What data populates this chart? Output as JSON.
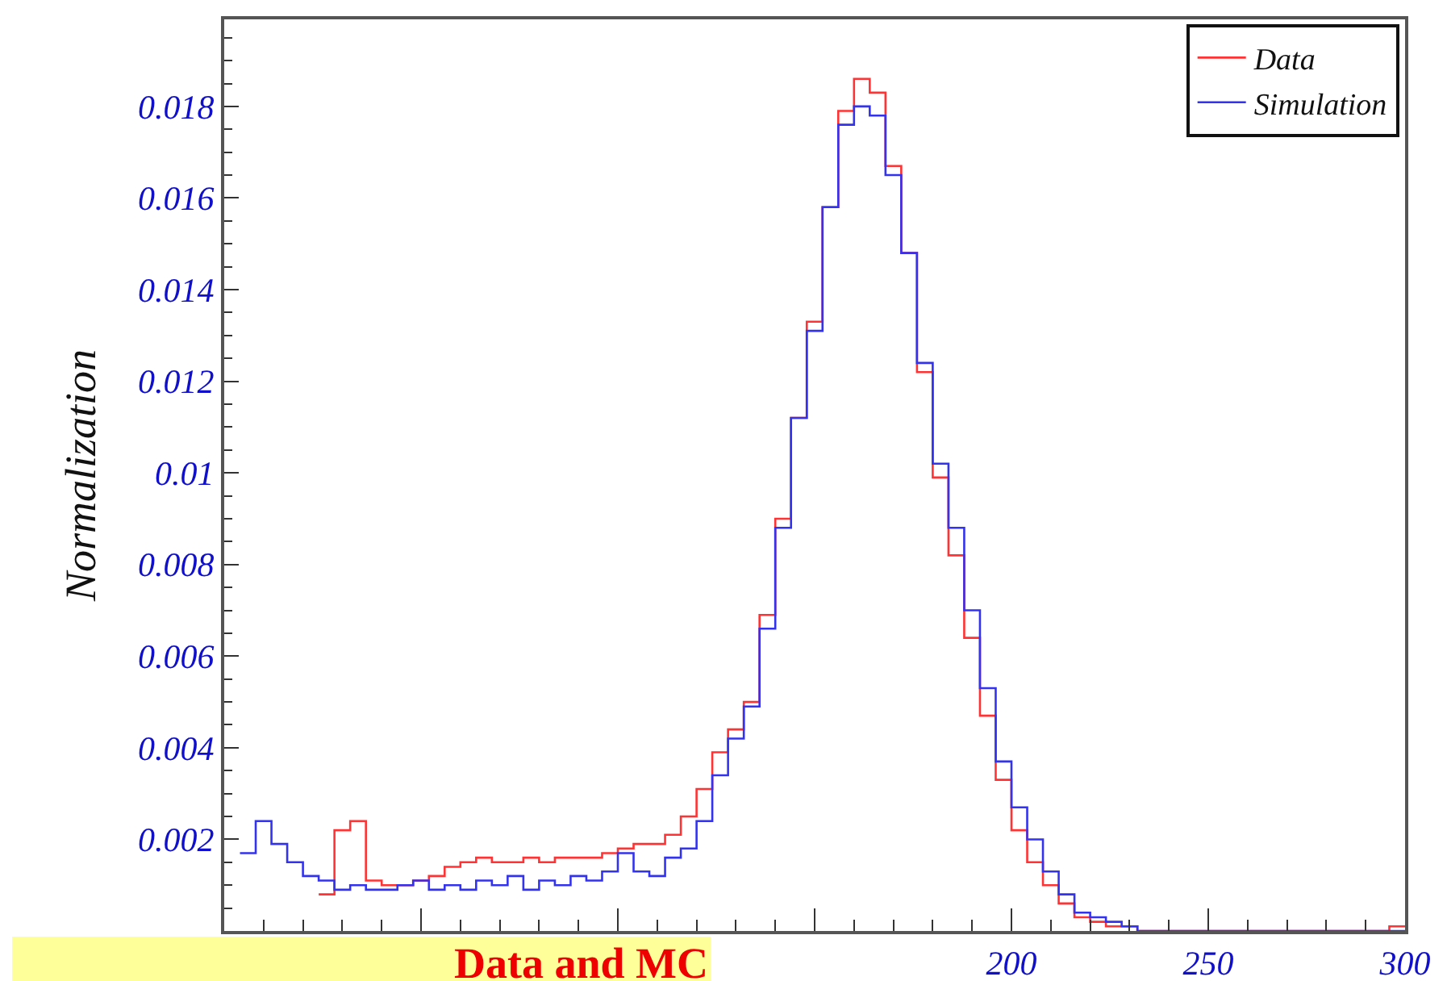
{
  "chart_data": {
    "type": "histogram",
    "ylabel": "Normalization",
    "bins": [
      4,
      8,
      12,
      16,
      20,
      24,
      28,
      32,
      36,
      40,
      44,
      48,
      52,
      56,
      60,
      64,
      68,
      72,
      76,
      80,
      84,
      88,
      92,
      96,
      100,
      104,
      108,
      112,
      116,
      120,
      124,
      128,
      132,
      136,
      140,
      144,
      148,
      152,
      156,
      160,
      164,
      168,
      172,
      176,
      180,
      184,
      188,
      192,
      196,
      200,
      204,
      208,
      212,
      216,
      220,
      224,
      228,
      232,
      236,
      240,
      244,
      248,
      252,
      256,
      260,
      264,
      268,
      272,
      276,
      280,
      284,
      288,
      292,
      296,
      300
    ],
    "series": [
      {
        "name": "Data",
        "color": "#ff3333",
        "bins": [
          24,
          28,
          32,
          36,
          40,
          44,
          48,
          52,
          56,
          60,
          64,
          68,
          72,
          76,
          80,
          84,
          88,
          92,
          96,
          100,
          104,
          108,
          112,
          116,
          120,
          124,
          128,
          132,
          136,
          140,
          144,
          148,
          152,
          156,
          160,
          164,
          168,
          172,
          176,
          180,
          184,
          188,
          192,
          196,
          200,
          204,
          208,
          212,
          216,
          220,
          224,
          228,
          232,
          236,
          240,
          244,
          248,
          252,
          256,
          260,
          264,
          268,
          272,
          276,
          280,
          284,
          288,
          292,
          296,
          300
        ],
        "values": [
          0.0008,
          0.0022,
          0.0024,
          0.0011,
          0.001,
          0.001,
          0.0011,
          0.0012,
          0.0014,
          0.0015,
          0.0016,
          0.0015,
          0.0015,
          0.0016,
          0.0015,
          0.0016,
          0.0016,
          0.0016,
          0.0017,
          0.0018,
          0.0019,
          0.0019,
          0.0021,
          0.0025,
          0.0031,
          0.0039,
          0.0044,
          0.005,
          0.0069,
          0.009,
          0.0112,
          0.0133,
          0.0158,
          0.0179,
          0.0186,
          0.0183,
          0.0167,
          0.0148,
          0.0122,
          0.0099,
          0.0082,
          0.0064,
          0.0047,
          0.0033,
          0.0022,
          0.0015,
          0.001,
          0.0006,
          0.0003,
          0.0002,
          0.0001,
          0.0001,
          0,
          0,
          0,
          0,
          0,
          0,
          0,
          0,
          0,
          0,
          0,
          0,
          0,
          0,
          0,
          0,
          0.0001
        ]
      },
      {
        "name": "Simulation",
        "color": "#3333ee",
        "values": [
          0.0017,
          0.0024,
          0.0019,
          0.0015,
          0.0012,
          0.0011,
          0.0009,
          0.001,
          0.0009,
          0.0009,
          0.001,
          0.0011,
          0.0009,
          0.001,
          0.0009,
          0.0011,
          0.001,
          0.0012,
          0.0009,
          0.0011,
          0.001,
          0.0012,
          0.0011,
          0.0013,
          0.0017,
          0.0013,
          0.0012,
          0.0016,
          0.0018,
          0.0024,
          0.0034,
          0.0042,
          0.0049,
          0.0066,
          0.0088,
          0.0112,
          0.0131,
          0.0158,
          0.0176,
          0.018,
          0.0178,
          0.0165,
          0.0148,
          0.0124,
          0.0102,
          0.0088,
          0.007,
          0.0053,
          0.0037,
          0.0027,
          0.002,
          0.0013,
          0.0008,
          0.0004,
          0.0003,
          0.0002,
          0.0001,
          0,
          0,
          0,
          0,
          0,
          0,
          0,
          0,
          0,
          0,
          0,
          0,
          0,
          0,
          0,
          0,
          0
        ]
      }
    ],
    "xlim": [
      0,
      300
    ],
    "xticks": [
      {
        "value": 0,
        "label": null
      },
      {
        "value": 50,
        "label": null
      },
      {
        "value": 100,
        "label": null
      },
      {
        "value": 150,
        "label": null
      },
      200,
      250,
      300
    ],
    "ylim": [
      0,
      0.0199
    ],
    "yticks": [
      0.002,
      0.004,
      0.006,
      0.008,
      0.01,
      0.012,
      0.014,
      0.016,
      0.018
    ],
    "legend": "top right",
    "annotations": [
      "Data and MC"
    ]
  }
}
